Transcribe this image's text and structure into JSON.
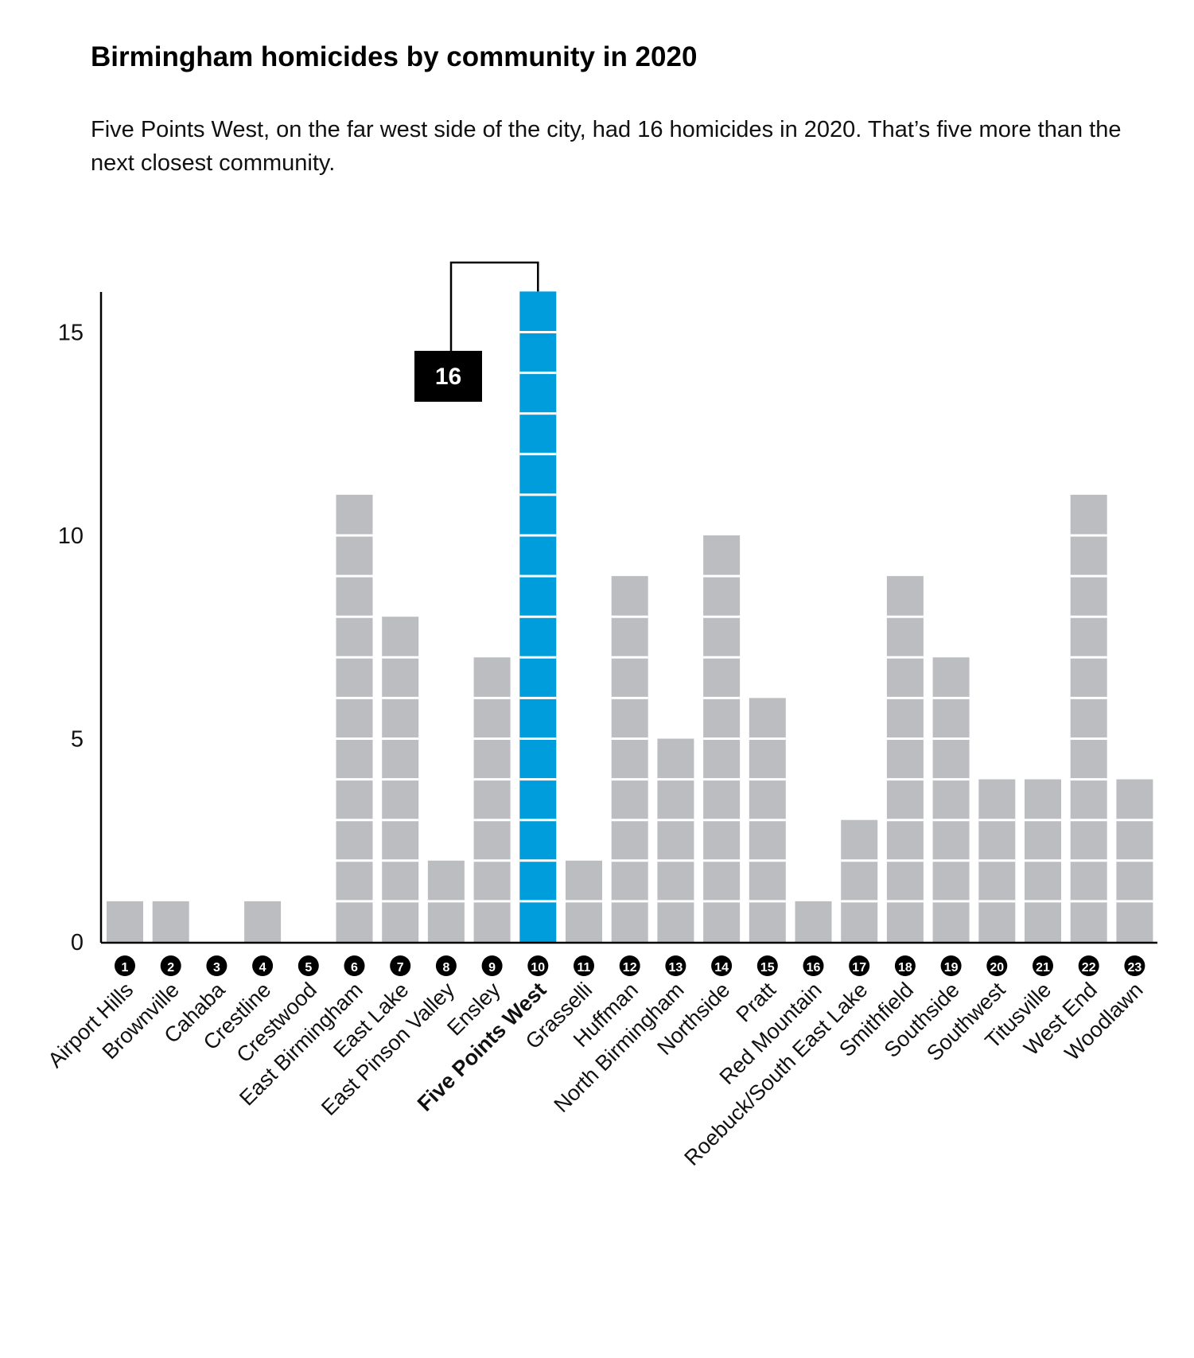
{
  "chart_data": {
    "type": "bar",
    "title": "Birmingham homicides by community in 2020",
    "subtitle": "Five Points West, on the far west side of the city, had 16 homicides in 2020. That’s five more than the next closest community.",
    "xlabel": "",
    "ylabel": "",
    "ylim": [
      0,
      16
    ],
    "yticks": [
      0,
      5,
      10,
      15
    ],
    "highlight": "Five Points West",
    "annotation": "16",
    "colors": {
      "default": "#bcbdc1",
      "highlight": "#009ddc"
    },
    "categories": [
      "Airport Hills",
      "Brownville",
      "Cahaba",
      "Crestline",
      "Crestwood",
      "East Birmingham",
      "East Lake",
      "East Pinson Valley",
      "Ensley",
      "Five Points West",
      "Grasselli",
      "Huffman",
      "North Birmingham",
      "Northside",
      "Pratt",
      "Red Mountain",
      "Roebuck/South East Lake",
      "Smithfield",
      "Southside",
      "Southwest",
      "Titusville",
      "West End",
      "Woodlawn"
    ],
    "numbers": [
      "1",
      "2",
      "3",
      "4",
      "5",
      "6",
      "7",
      "8",
      "9",
      "10",
      "11",
      "12",
      "13",
      "14",
      "15",
      "16",
      "17",
      "18",
      "19",
      "20",
      "21",
      "22",
      "23"
    ],
    "values": [
      1,
      1,
      0,
      1,
      0,
      11,
      8,
      2,
      7,
      16,
      2,
      9,
      5,
      10,
      6,
      1,
      3,
      9,
      7,
      4,
      4,
      11,
      4
    ]
  }
}
